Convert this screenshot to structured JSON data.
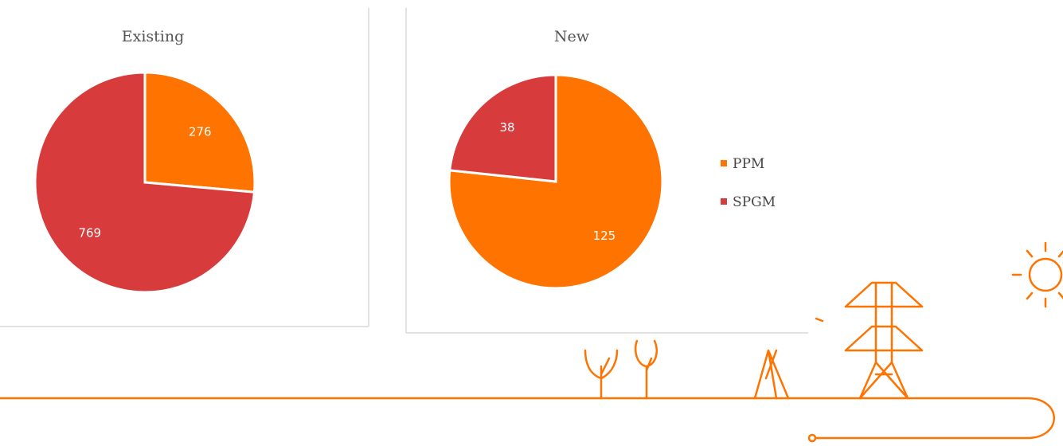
{
  "chart_data": [
    {
      "type": "pie",
      "title": "Existing",
      "values": [
        276,
        769
      ],
      "colors": [
        "#ff7300",
        "#d83b3b"
      ]
    },
    {
      "type": "pie",
      "title": "New",
      "categories": [
        "PPM",
        "SPGM"
      ],
      "values": [
        125,
        38
      ],
      "colors": [
        "#ff7300",
        "#d83b3b"
      ],
      "legend": "right"
    }
  ]
}
